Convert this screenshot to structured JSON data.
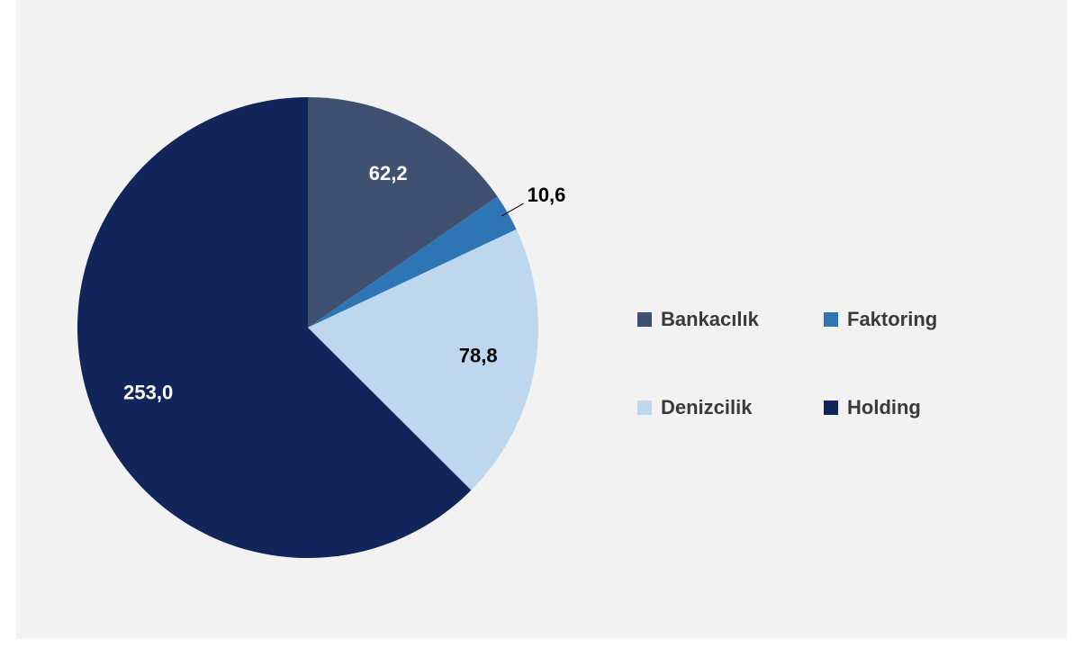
{
  "chart_data": {
    "type": "pie",
    "categories": [
      "Bankacılık",
      "Faktoring",
      "Denizcilik",
      "Holding"
    ],
    "values": [
      62.2,
      10.6,
      78.8,
      253.0
    ],
    "value_labels": [
      "62,2",
      "10,6",
      "78,8",
      "253,0"
    ],
    "colors": [
      "#3f5071",
      "#2e75b6",
      "#bdd7ee",
      "#12255a"
    ]
  }
}
